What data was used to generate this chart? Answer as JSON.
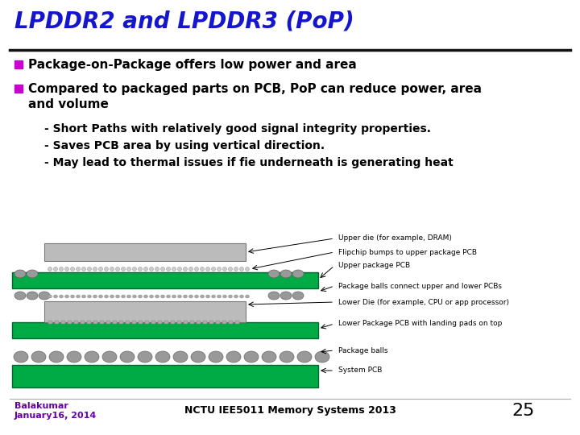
{
  "title": "LPDDR2 and LPDDR3 (PoP)",
  "title_color": "#1515CC",
  "title_fontsize": 20,
  "separator_color": "#111111",
  "bullet_color": "#CC00CC",
  "bullet1": "Package-on-Package offers low power and area",
  "bullet2_line1": "Compared to packaged parts on PCB, PoP can reduce power, area",
  "bullet2_line2": "and volume",
  "sub1": "- Short Paths with relatively good signal integrity properties.",
  "sub2": "- Saves PCB area by using vertical direction.",
  "sub3": "- May lead to thermal issues if fie underneath is generating heat",
  "footer_left_line1": "Balakumar",
  "footer_left_line2": "January16, 2014",
  "footer_left_color": "#6600AA",
  "footer_center": "NCTU IEE5011 Memory Systems 2013",
  "footer_page": "25",
  "bg_color": "#FFFFFF",
  "text_color": "#000000",
  "diagram_labels": [
    "Upper die (for example, DRAM)",
    "Flipchip bumps to upper package PCB",
    "Upper package PCB",
    "Package balls connect upper and lower PCBs",
    "Lower Die (for example, CPU or app processor)",
    "Lower Package PCB with landing pads on top",
    "Package balls",
    "System PCB"
  ],
  "green_color": "#00AA44",
  "gray_chip": "#BBBBBB",
  "ball_color": "#999999",
  "pcb_edge_color": "#006633"
}
